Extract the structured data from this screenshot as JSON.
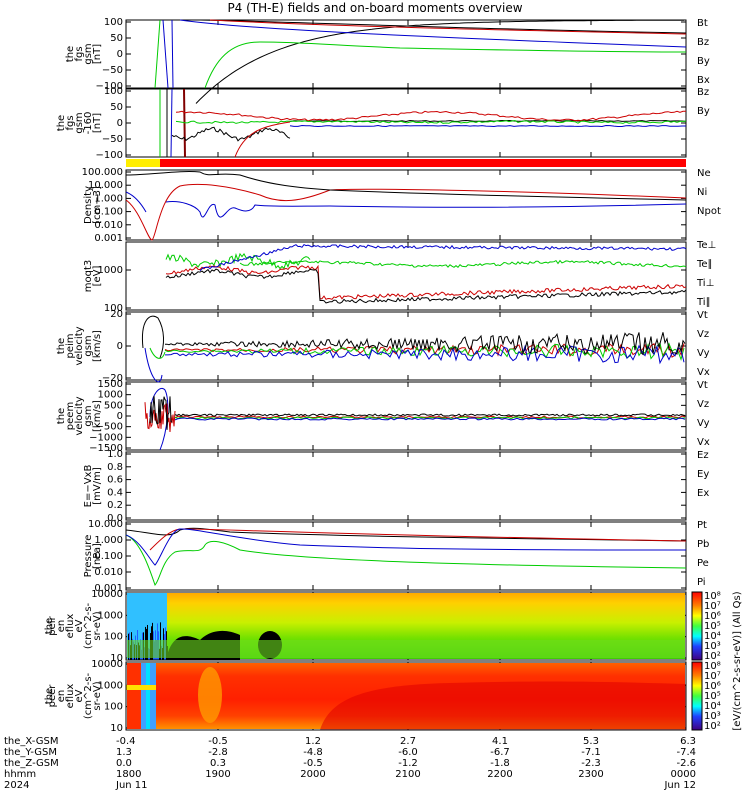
{
  "title": "P4 (TH-E) fields and on-board moments overview",
  "chart_data": [
    {
      "type": "line",
      "ylabel": [
        "the",
        "fgs",
        "gsm",
        "[nT]"
      ],
      "yticks": [
        "100",
        "50",
        "0",
        "−50",
        "−100"
      ],
      "ylim": [
        -100,
        100
      ],
      "legend": [
        {
          "name": "Bt",
          "color": "#000000"
        },
        {
          "name": "Bz",
          "color": "#cc0000"
        },
        {
          "name": "By",
          "color": "#00cc00"
        },
        {
          "name": "Bx",
          "color": "#0000cc"
        }
      ]
    },
    {
      "type": "line",
      "ylabel": [
        "the",
        "fgs",
        "gsm",
        "-160",
        "[nT]"
      ],
      "yticks": [
        "100",
        "50",
        "0",
        "−50",
        "−100"
      ],
      "ylim": [
        -100,
        100
      ],
      "legend": [
        {
          "name": "Bz",
          "color": "#cc0000"
        },
        {
          "name": "By",
          "color": "#00cc00"
        }
      ]
    },
    {
      "type": "bar",
      "ylabel": [],
      "legend": []
    },
    {
      "type": "line",
      "ylabel": [
        "Density",
        "[cm−3]"
      ],
      "yticks": [
        "100.000",
        "10.000",
        "1.000",
        "0.100",
        "0.010",
        "0.001"
      ],
      "ylim": [
        0.001,
        100
      ],
      "yscale": "log",
      "legend": [
        {
          "name": "Ne",
          "color": "#cc0000"
        },
        {
          "name": "Ni",
          "color": "#000000"
        },
        {
          "name": "Npot",
          "color": "#0000cc"
        }
      ]
    },
    {
      "type": "line",
      "ylabel": [
        "moqt3",
        "[eV]"
      ],
      "yticks": [
        "1000",
        "100"
      ],
      "yscale": "log",
      "legend": [
        {
          "name": "Te⊥",
          "color": "#cc0000"
        },
        {
          "name": "Te∥",
          "color": "#000000"
        },
        {
          "name": "Ti⊥",
          "color": "#00cc00"
        },
        {
          "name": "Ti∥",
          "color": "#00cc00"
        }
      ]
    },
    {
      "type": "line",
      "ylabel": [
        "the",
        "peim",
        "velocity",
        "gsm",
        "[km/s]"
      ],
      "yticks": [
        "20",
        "0",
        "−20"
      ],
      "legend": [
        {
          "name": "Vt",
          "color": "#000000"
        },
        {
          "name": "Vz",
          "color": "#cc0000"
        },
        {
          "name": "Vy",
          "color": "#00cc00"
        },
        {
          "name": "Vx",
          "color": "#0000cc"
        }
      ]
    },
    {
      "type": "line",
      "ylabel": [
        "the",
        "peem",
        "velocity",
        "gsm",
        "[km/s]"
      ],
      "yticks": [
        "1500",
        "1000",
        "500",
        "0",
        "−500",
        "−1000",
        "−1500"
      ],
      "legend": [
        {
          "name": "Vt",
          "color": "#000000"
        },
        {
          "name": "Vz",
          "color": "#cc0000"
        },
        {
          "name": "Vy",
          "color": "#00cc00"
        },
        {
          "name": "Vx",
          "color": "#0000cc"
        }
      ]
    },
    {
      "type": "line",
      "ylabel": [
        "E=−VxB",
        "[mV/m]"
      ],
      "yticks": [
        "1.0",
        "0.8",
        "0.6",
        "0.4",
        "0.2",
        "0.0"
      ],
      "ylim": [
        0,
        1
      ],
      "legend": [
        {
          "name": "Ez",
          "color": "#cc0000"
        },
        {
          "name": "Ey",
          "color": "#00cc00"
        },
        {
          "name": "Ex",
          "color": "#0000cc"
        }
      ]
    },
    {
      "type": "line",
      "ylabel": [
        "Pressure",
        "[nPa]"
      ],
      "yticks": [
        "10.000",
        "1.000",
        "0.100",
        "0.010",
        "0.001"
      ],
      "yscale": "log",
      "legend": [
        {
          "name": "Pt",
          "color": "#000000"
        },
        {
          "name": "Pb",
          "color": "#cc0000"
        },
        {
          "name": "Pe",
          "color": "#00cc00"
        },
        {
          "name": "Pi",
          "color": "#0000cc"
        }
      ]
    },
    {
      "type": "heatmap",
      "ylabel": [
        "the",
        "peir",
        "en",
        "eflux",
        "eV",
        "(cm^2-s-",
        "sr-eV)"
      ],
      "yticks": [
        "10000",
        "1000",
        "100",
        "10"
      ],
      "yscale": "log",
      "legend": []
    },
    {
      "type": "heatmap",
      "ylabel": [
        "the",
        "peer",
        "en",
        "eflux",
        "eV",
        "(cm^2-s-",
        "sr-eV)"
      ],
      "yticks": [
        "10000",
        "1000",
        "100",
        "10"
      ],
      "yscale": "log",
      "legend": []
    }
  ],
  "colorbar": {
    "label": "[eV/(cm^2-s-sr-eV)] (All Qs)",
    "ticks": [
      "10⁸",
      "10⁷",
      "10⁶",
      "10⁵",
      "10⁴",
      "10³",
      "10²"
    ]
  },
  "xaxis": {
    "row_labels": [
      "the_X-GSM",
      "the_Y-GSM",
      "the_Z-GSM",
      "hhmm",
      "2024"
    ],
    "columns": [
      [
        "-0.4",
        "1.3",
        "0.0",
        "1800",
        "Jun 11"
      ],
      [
        "-0.5",
        "-2.8",
        "0.3",
        "1900",
        ""
      ],
      [
        "1.2",
        "-4.8",
        "-0.5",
        "2000",
        ""
      ],
      [
        "2.7",
        "-6.0",
        "-1.2",
        "2100",
        ""
      ],
      [
        "4.1",
        "-6.7",
        "-1.8",
        "2200",
        ""
      ],
      [
        "5.3",
        "-7.1",
        "-2.3",
        "2300",
        ""
      ],
      [
        "6.3",
        "-7.4",
        "-2.6",
        "0000",
        "Jun 12"
      ]
    ]
  },
  "colors": {
    "black": "#000000",
    "red": "#cc0000",
    "green": "#00cc00",
    "blue": "#0000cc",
    "flag_yellow": "#ffee00",
    "flag_red": "#ff0000"
  }
}
